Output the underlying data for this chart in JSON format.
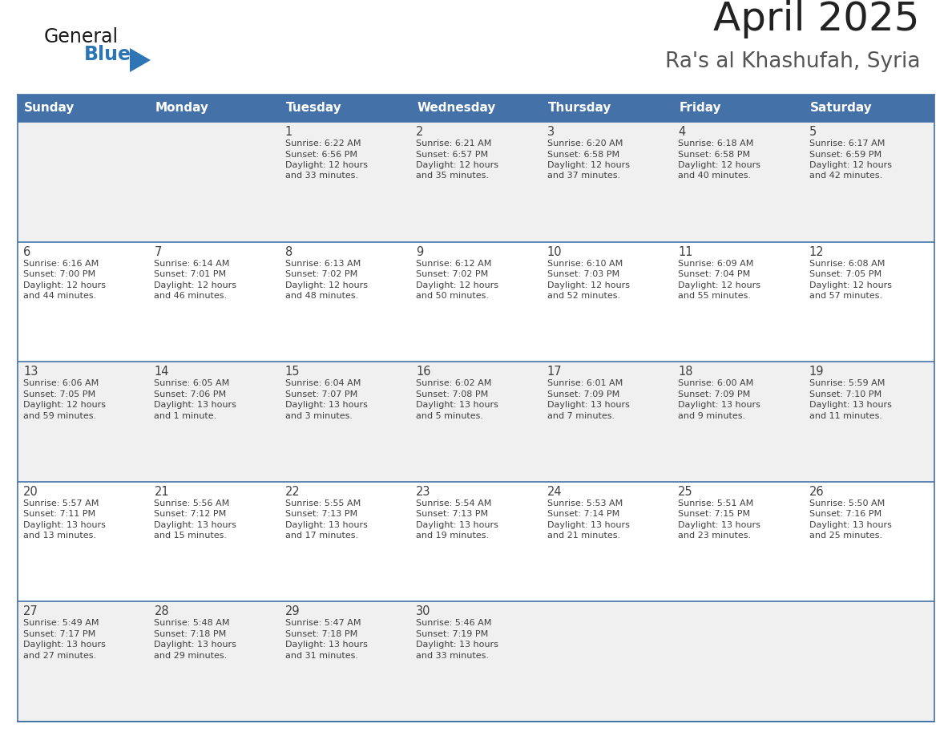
{
  "title": "April 2025",
  "subtitle": "Ra's al Khashufah, Syria",
  "days_of_week": [
    "Sunday",
    "Monday",
    "Tuesday",
    "Wednesday",
    "Thursday",
    "Friday",
    "Saturday"
  ],
  "header_bg_color": "#4472A8",
  "header_text_color": "#FFFFFF",
  "cell_bg_row0": "#F0F0F0",
  "cell_bg_row1": "#FFFFFF",
  "cell_bg_row2": "#F0F0F0",
  "cell_bg_row3": "#FFFFFF",
  "cell_bg_row4": "#F0F0F0",
  "border_color": "#4472A8",
  "row_divider_color": "#4472A8",
  "text_color": "#404040",
  "title_color": "#222222",
  "subtitle_color": "#555555",
  "logo_general_color": "#1a1a1a",
  "logo_blue_color": "#2E75B6",
  "calendar": [
    [
      {
        "day": null,
        "sunrise": null,
        "sunset": null,
        "daylight": null
      },
      {
        "day": null,
        "sunrise": null,
        "sunset": null,
        "daylight": null
      },
      {
        "day": 1,
        "sunrise": "6:22 AM",
        "sunset": "6:56 PM",
        "daylight": "12 hours\nand 33 minutes."
      },
      {
        "day": 2,
        "sunrise": "6:21 AM",
        "sunset": "6:57 PM",
        "daylight": "12 hours\nand 35 minutes."
      },
      {
        "day": 3,
        "sunrise": "6:20 AM",
        "sunset": "6:58 PM",
        "daylight": "12 hours\nand 37 minutes."
      },
      {
        "day": 4,
        "sunrise": "6:18 AM",
        "sunset": "6:58 PM",
        "daylight": "12 hours\nand 40 minutes."
      },
      {
        "day": 5,
        "sunrise": "6:17 AM",
        "sunset": "6:59 PM",
        "daylight": "12 hours\nand 42 minutes."
      }
    ],
    [
      {
        "day": 6,
        "sunrise": "6:16 AM",
        "sunset": "7:00 PM",
        "daylight": "12 hours\nand 44 minutes."
      },
      {
        "day": 7,
        "sunrise": "6:14 AM",
        "sunset": "7:01 PM",
        "daylight": "12 hours\nand 46 minutes."
      },
      {
        "day": 8,
        "sunrise": "6:13 AM",
        "sunset": "7:02 PM",
        "daylight": "12 hours\nand 48 minutes."
      },
      {
        "day": 9,
        "sunrise": "6:12 AM",
        "sunset": "7:02 PM",
        "daylight": "12 hours\nand 50 minutes."
      },
      {
        "day": 10,
        "sunrise": "6:10 AM",
        "sunset": "7:03 PM",
        "daylight": "12 hours\nand 52 minutes."
      },
      {
        "day": 11,
        "sunrise": "6:09 AM",
        "sunset": "7:04 PM",
        "daylight": "12 hours\nand 55 minutes."
      },
      {
        "day": 12,
        "sunrise": "6:08 AM",
        "sunset": "7:05 PM",
        "daylight": "12 hours\nand 57 minutes."
      }
    ],
    [
      {
        "day": 13,
        "sunrise": "6:06 AM",
        "sunset": "7:05 PM",
        "daylight": "12 hours\nand 59 minutes."
      },
      {
        "day": 14,
        "sunrise": "6:05 AM",
        "sunset": "7:06 PM",
        "daylight": "13 hours\nand 1 minute."
      },
      {
        "day": 15,
        "sunrise": "6:04 AM",
        "sunset": "7:07 PM",
        "daylight": "13 hours\nand 3 minutes."
      },
      {
        "day": 16,
        "sunrise": "6:02 AM",
        "sunset": "7:08 PM",
        "daylight": "13 hours\nand 5 minutes."
      },
      {
        "day": 17,
        "sunrise": "6:01 AM",
        "sunset": "7:09 PM",
        "daylight": "13 hours\nand 7 minutes."
      },
      {
        "day": 18,
        "sunrise": "6:00 AM",
        "sunset": "7:09 PM",
        "daylight": "13 hours\nand 9 minutes."
      },
      {
        "day": 19,
        "sunrise": "5:59 AM",
        "sunset": "7:10 PM",
        "daylight": "13 hours\nand 11 minutes."
      }
    ],
    [
      {
        "day": 20,
        "sunrise": "5:57 AM",
        "sunset": "7:11 PM",
        "daylight": "13 hours\nand 13 minutes."
      },
      {
        "day": 21,
        "sunrise": "5:56 AM",
        "sunset": "7:12 PM",
        "daylight": "13 hours\nand 15 minutes."
      },
      {
        "day": 22,
        "sunrise": "5:55 AM",
        "sunset": "7:13 PM",
        "daylight": "13 hours\nand 17 minutes."
      },
      {
        "day": 23,
        "sunrise": "5:54 AM",
        "sunset": "7:13 PM",
        "daylight": "13 hours\nand 19 minutes."
      },
      {
        "day": 24,
        "sunrise": "5:53 AM",
        "sunset": "7:14 PM",
        "daylight": "13 hours\nand 21 minutes."
      },
      {
        "day": 25,
        "sunrise": "5:51 AM",
        "sunset": "7:15 PM",
        "daylight": "13 hours\nand 23 minutes."
      },
      {
        "day": 26,
        "sunrise": "5:50 AM",
        "sunset": "7:16 PM",
        "daylight": "13 hours\nand 25 minutes."
      }
    ],
    [
      {
        "day": 27,
        "sunrise": "5:49 AM",
        "sunset": "7:17 PM",
        "daylight": "13 hours\nand 27 minutes."
      },
      {
        "day": 28,
        "sunrise": "5:48 AM",
        "sunset": "7:18 PM",
        "daylight": "13 hours\nand 29 minutes."
      },
      {
        "day": 29,
        "sunrise": "5:47 AM",
        "sunset": "7:18 PM",
        "daylight": "13 hours\nand 31 minutes."
      },
      {
        "day": 30,
        "sunrise": "5:46 AM",
        "sunset": "7:19 PM",
        "daylight": "13 hours\nand 33 minutes."
      },
      {
        "day": null,
        "sunrise": null,
        "sunset": null,
        "daylight": null
      },
      {
        "day": null,
        "sunrise": null,
        "sunset": null,
        "daylight": null
      },
      {
        "day": null,
        "sunrise": null,
        "sunset": null,
        "daylight": null
      }
    ]
  ],
  "figsize": [
    11.88,
    9.18
  ],
  "dpi": 100
}
